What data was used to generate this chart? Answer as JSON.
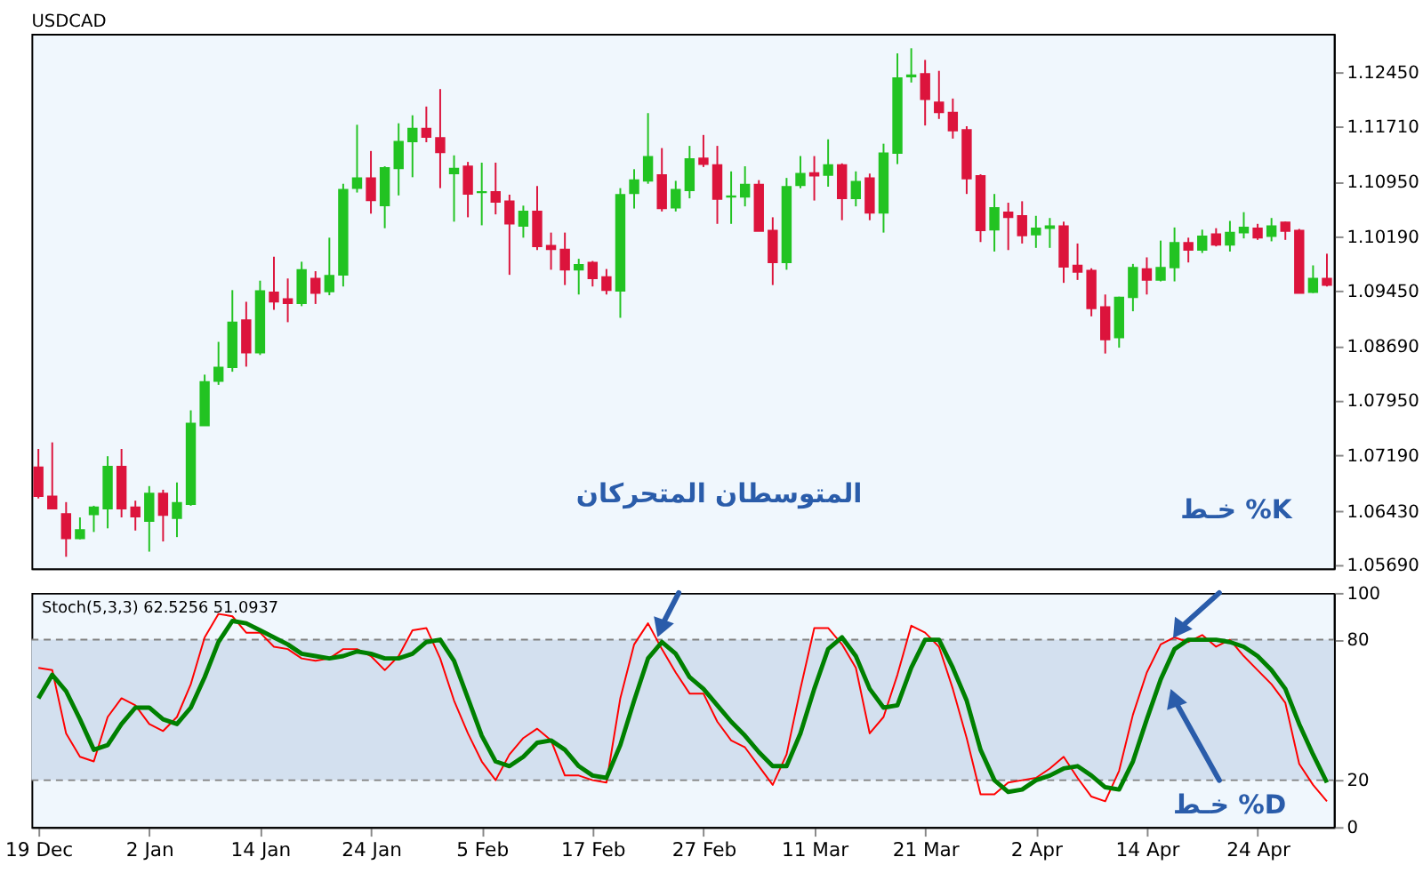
{
  "chart_data": [
    {
      "type": "candlestick",
      "title": "USDCAD",
      "categories": [
        null,
        null,
        null,
        null,
        null,
        null,
        null,
        null,
        null,
        null,
        null,
        null,
        null,
        null,
        null,
        null,
        null,
        null,
        null,
        null,
        null,
        null,
        null,
        null,
        null,
        null,
        null,
        null,
        null,
        null,
        null,
        null,
        null,
        null,
        null,
        null,
        null,
        null,
        null,
        null,
        null,
        null,
        null,
        null,
        null,
        null,
        null,
        null,
        null,
        null,
        null,
        null,
        null,
        null,
        null,
        null,
        null,
        null,
        null,
        null,
        null,
        null,
        null,
        null,
        null,
        null,
        null,
        null,
        null,
        null,
        null,
        null,
        null,
        null,
        null,
        null,
        null,
        null,
        null,
        null,
        null,
        null,
        null,
        null,
        null,
        null,
        null,
        null,
        null,
        null,
        null,
        null,
        null,
        null
      ],
      "ohlc": [
        [
          1.0703,
          1.0728,
          1.066,
          1.0663
        ],
        [
          1.0663,
          1.0737,
          1.0646,
          1.0646
        ],
        [
          1.0639,
          1.0655,
          1.058,
          1.0605
        ],
        [
          1.0605,
          1.0634,
          1.0604,
          1.0617
        ],
        [
          1.0638,
          1.065,
          1.0614,
          1.0648
        ],
        [
          1.0646,
          1.0718,
          1.0619,
          1.0704
        ],
        [
          1.0704,
          1.0728,
          1.0634,
          1.0646
        ],
        [
          1.0648,
          1.0657,
          1.0616,
          1.0635
        ],
        [
          1.0629,
          1.0677,
          1.0587,
          1.0667
        ],
        [
          1.0667,
          1.0672,
          1.0601,
          1.0637
        ],
        [
          1.0633,
          1.0682,
          1.0607,
          1.0654
        ],
        [
          1.0652,
          1.0781,
          1.065,
          1.0763
        ],
        [
          1.076,
          1.083,
          1.076,
          1.082
        ],
        [
          1.0821,
          1.0875,
          1.0816,
          1.084
        ],
        [
          1.084,
          1.0946,
          1.0834,
          1.0902
        ],
        [
          1.0905,
          1.093,
          1.0841,
          1.086
        ],
        [
          1.086,
          1.0959,
          1.0857,
          1.0945
        ],
        [
          1.0943,
          1.0992,
          1.0919,
          1.093
        ],
        [
          1.0934,
          1.0962,
          1.0902,
          1.0928
        ],
        [
          1.0928,
          1.0985,
          1.0924,
          1.0974
        ],
        [
          1.0962,
          1.0972,
          1.0927,
          1.0942
        ],
        [
          1.0944,
          1.1018,
          1.0939,
          1.0966
        ],
        [
          1.0967,
          1.1092,
          1.0951,
          1.1084
        ],
        [
          1.1086,
          1.1173,
          1.108,
          1.11
        ],
        [
          1.11,
          1.1137,
          1.1051,
          1.1069
        ],
        [
          1.1062,
          1.1116,
          1.1031,
          1.1114
        ],
        [
          1.1113,
          1.1175,
          1.1076,
          1.115
        ],
        [
          1.115,
          1.1186,
          1.1101,
          1.1168
        ],
        [
          1.1168,
          1.1198,
          1.1149,
          1.1156
        ],
        [
          1.1155,
          1.1222,
          1.1086,
          1.1135
        ],
        [
          1.1106,
          1.1131,
          1.104,
          1.1113
        ],
        [
          1.1116,
          1.1122,
          1.1046,
          1.1078
        ],
        [
          1.108,
          1.1121,
          1.1035,
          1.1081
        ],
        [
          1.1081,
          1.1121,
          1.105,
          1.1067
        ],
        [
          1.1068,
          1.1077,
          1.0967,
          1.1037
        ],
        [
          1.1034,
          1.1062,
          1.1018,
          1.1054
        ],
        [
          1.1054,
          1.1089,
          1.1001,
          1.1006
        ],
        [
          1.1007,
          1.1025,
          1.0974,
          1.1002
        ],
        [
          1.1002,
          1.1025,
          1.0953,
          1.0974
        ],
        [
          1.0974,
          1.0989,
          1.094,
          1.0981
        ],
        [
          1.0984,
          1.0986,
          1.0951,
          1.0962
        ],
        [
          1.0964,
          1.0975,
          1.094,
          1.0946
        ],
        [
          1.0945,
          1.1086,
          1.0908,
          1.1077
        ],
        [
          1.1079,
          1.1112,
          1.1058,
          1.1097
        ],
        [
          1.1096,
          1.1189,
          1.1092,
          1.1129
        ],
        [
          1.1104,
          1.1141,
          1.1054,
          1.1058
        ],
        [
          1.1059,
          1.1096,
          1.1054,
          1.1084
        ],
        [
          1.1083,
          1.1144,
          1.1072,
          1.1126
        ],
        [
          1.1127,
          1.1159,
          1.1115,
          1.1119
        ],
        [
          1.1118,
          1.1144,
          1.1037,
          1.1071
        ],
        [
          1.1074,
          1.1109,
          1.1037,
          1.1075
        ],
        [
          1.1074,
          1.1116,
          1.1061,
          1.1091
        ],
        [
          1.1091,
          1.1097,
          1.1027,
          1.1027
        ],
        [
          1.1028,
          1.1046,
          1.0953,
          1.0984
        ],
        [
          1.0984,
          1.11,
          1.0974,
          1.1088
        ],
        [
          1.109,
          1.113,
          1.1086,
          1.1106
        ],
        [
          1.1107,
          1.113,
          1.1069,
          1.1103
        ],
        [
          1.1104,
          1.1153,
          1.1088,
          1.1118
        ],
        [
          1.1118,
          1.112,
          1.1042,
          1.1072
        ],
        [
          1.1072,
          1.1109,
          1.1061,
          1.1095
        ],
        [
          1.11,
          1.1106,
          1.1042,
          1.1052
        ],
        [
          1.1052,
          1.1147,
          1.1025,
          1.1134
        ],
        [
          1.1134,
          1.1271,
          1.1119,
          1.1237
        ],
        [
          1.1239,
          1.1278,
          1.1231,
          1.1241
        ],
        [
          1.1243,
          1.1262,
          1.1172,
          1.1208
        ],
        [
          1.1204,
          1.1247,
          1.1181,
          1.119
        ],
        [
          1.119,
          1.1209,
          1.1154,
          1.1165
        ],
        [
          1.1166,
          1.1171,
          1.1078,
          1.1099
        ],
        [
          1.1103,
          1.1105,
          1.1012,
          1.1028
        ],
        [
          1.1029,
          1.1078,
          1.0999,
          1.1059
        ],
        [
          1.1053,
          1.1066,
          1.1001,
          1.1046
        ],
        [
          1.1048,
          1.1068,
          1.101,
          1.1021
        ],
        [
          1.1022,
          1.1048,
          1.1004,
          1.1031
        ],
        [
          1.1031,
          1.1045,
          1.1004,
          1.1034
        ],
        [
          1.1034,
          1.104,
          1.0956,
          1.0978
        ],
        [
          1.098,
          1.101,
          1.096,
          1.0971
        ],
        [
          1.0973,
          1.0976,
          1.091,
          1.0921
        ],
        [
          1.0923,
          1.094,
          1.0859,
          1.0878
        ],
        [
          1.0881,
          1.0937,
          1.0867,
          1.0936
        ],
        [
          1.0936,
          1.0982,
          1.0917,
          1.0977
        ],
        [
          1.0975,
          1.0991,
          1.094,
          1.096
        ],
        [
          1.096,
          1.1014,
          1.0958,
          1.0977
        ],
        [
          1.0977,
          1.1032,
          1.0958,
          1.1011
        ],
        [
          1.1011,
          1.1018,
          1.0984,
          1.1001
        ],
        [
          1.1001,
          1.1029,
          1.0997,
          1.102
        ],
        [
          1.1023,
          1.1031,
          1.1006,
          1.1008
        ],
        [
          1.1008,
          1.1041,
          1.0999,
          1.1025
        ],
        [
          1.1025,
          1.1053,
          1.1017,
          1.1032
        ],
        [
          1.1031,
          1.1037,
          1.1015,
          1.1018
        ],
        [
          1.102,
          1.1045,
          1.1013,
          1.1034
        ],
        [
          1.1039,
          1.104,
          1.1015,
          1.1027
        ],
        [
          1.1028,
          1.103,
          1.0942,
          1.0942
        ],
        [
          1.0943,
          1.098,
          1.0942,
          1.0962
        ],
        [
          1.0962,
          1.0996,
          1.0951,
          1.0953
        ]
      ],
      "colors": [
        "#dc143c",
        "#dc143c",
        "#dc143c",
        "#22c322",
        "#22c322",
        "#22c322",
        "#dc143c",
        "#dc143c",
        "#22c322",
        "#dc143c",
        "#22c322",
        "#22c322",
        "#22c322",
        "#22c322",
        "#22c322",
        "#dc143c",
        "#22c322",
        "#dc143c",
        "#dc143c",
        "#22c322",
        "#dc143c",
        "#22c322",
        "#22c322",
        "#22c322",
        "#dc143c",
        "#22c322",
        "#22c322",
        "#22c322",
        "#dc143c",
        "#dc143c",
        "#22c322",
        "#dc143c",
        "#22c322",
        "#dc143c",
        "#dc143c",
        "#22c322",
        "#dc143c",
        "#dc143c",
        "#dc143c",
        "#22c322",
        "#dc143c",
        "#dc143c",
        "#22c322",
        "#22c322",
        "#22c322",
        "#dc143c",
        "#22c322",
        "#22c322",
        "#dc143c",
        "#dc143c",
        "#22c322",
        "#22c322",
        "#dc143c",
        "#dc143c",
        "#22c322",
        "#22c322",
        "#dc143c",
        "#22c322",
        "#dc143c",
        "#22c322",
        "#dc143c",
        "#22c322",
        "#22c322",
        "#22c322",
        "#dc143c",
        "#dc143c",
        "#dc143c",
        "#dc143c",
        "#dc143c",
        "#22c322",
        "#dc143c",
        "#dc143c",
        "#22c322",
        "#22c322",
        "#dc143c",
        "#dc143c",
        "#dc143c",
        "#dc143c",
        "#22c322",
        "#22c322",
        "#dc143c",
        "#22c322",
        "#22c322",
        "#dc143c",
        "#22c322",
        "#dc143c",
        "#22c322",
        "#22c322",
        "#dc143c",
        "#22c322",
        "#dc143c",
        "#dc143c",
        "#22c322",
        "#dc143c"
      ],
      "ylim": [
        1.0564,
        1.1298
      ],
      "yticks": [
        {
          "value": 1.1245,
          "label": "1.12450"
        },
        {
          "value": 1.1171,
          "label": "1.11710"
        },
        {
          "value": 1.1095,
          "label": "1.10950"
        },
        {
          "value": 1.1019,
          "label": "1.10190"
        },
        {
          "value": 1.0945,
          "label": "1.09450"
        },
        {
          "value": 1.0869,
          "label": "1.08690"
        },
        {
          "value": 1.0795,
          "label": "1.07950"
        },
        {
          "value": 1.0719,
          "label": "1.07190"
        },
        {
          "value": 1.0643,
          "label": "1.06430"
        },
        {
          "value": 1.0569,
          "label": "1.05690"
        }
      ],
      "annotations": [
        "المتوسطان المتحركان",
        "خـط %K"
      ],
      "tick_labels": "y"
    },
    {
      "type": "line",
      "categories": [
        "19 Dec",
        null,
        null,
        null,
        null,
        null,
        null,
        null,
        "2 Jan",
        null,
        null,
        null,
        null,
        null,
        null,
        null,
        "14 Jan",
        null,
        null,
        null,
        null,
        null,
        null,
        null,
        "24 Jan",
        null,
        null,
        null,
        null,
        null,
        null,
        null,
        "5 Feb",
        null,
        null,
        null,
        null,
        null,
        null,
        null,
        "17 Feb",
        null,
        null,
        null,
        null,
        null,
        null,
        null,
        "27 Feb",
        null,
        null,
        null,
        null,
        null,
        null,
        null,
        "11 Mar",
        null,
        null,
        null,
        null,
        null,
        null,
        null,
        "21 Mar",
        null,
        null,
        null,
        null,
        null,
        null,
        null,
        "2 Apr",
        null,
        null,
        null,
        null,
        null,
        null,
        null,
        "14 Apr",
        null,
        null,
        null,
        null,
        null,
        null,
        null,
        "24 Apr",
        null,
        null,
        null,
        null,
        null
      ],
      "series": [
        {
          "color": "#ff0000",
          "values": [
            68,
            67,
            40,
            30,
            28,
            47,
            55,
            52,
            44,
            41,
            47,
            61,
            81,
            91,
            90,
            83,
            83,
            77,
            76,
            72,
            71,
            72,
            76,
            76,
            73,
            67,
            73,
            84,
            85,
            72,
            54,
            40,
            28,
            20,
            31,
            38,
            42,
            37,
            22,
            22,
            20,
            19,
            55,
            78,
            87,
            76,
            66,
            57,
            57,
            45,
            37,
            34,
            26,
            18,
            31,
            59,
            85,
            85,
            78,
            68,
            40,
            47,
            65,
            86,
            83,
            77,
            59,
            38,
            14,
            14,
            19,
            20,
            21,
            25,
            30,
            21,
            13,
            11,
            24,
            48,
            66,
            78,
            81,
            79,
            82,
            77,
            80,
            73,
            67,
            61,
            53,
            27,
            18,
            11
          ]
        },
        {
          "color": "#008000",
          "values": [
            55,
            65,
            58,
            46,
            33,
            35,
            44,
            51,
            51,
            46,
            44,
            51,
            64,
            79,
            88,
            87,
            84,
            81,
            78,
            74,
            73,
            72,
            73,
            75,
            74,
            72,
            72,
            74,
            79,
            80,
            71,
            55,
            39,
            28,
            26,
            30,
            36,
            37,
            33,
            26,
            22,
            21,
            35,
            54,
            72,
            79,
            74,
            64,
            59,
            52,
            45,
            39,
            32,
            26,
            26,
            40,
            59,
            76,
            81,
            73,
            59,
            51,
            52,
            68,
            80,
            80,
            68,
            54,
            33,
            20,
            15,
            16,
            20,
            22,
            25,
            26,
            22,
            17,
            16,
            28,
            46,
            63,
            76,
            80,
            80,
            80,
            79,
            77,
            73,
            67,
            59,
            44,
            31,
            19
          ]
        }
      ],
      "ylim": [
        0,
        100
      ],
      "yticks": [
        0,
        20,
        80,
        100
      ],
      "bands": [
        {
          "axis": "y",
          "from": 20,
          "to": 80,
          "color": "#d3e0ef"
        }
      ],
      "ref_lines": [
        {
          "axis": "y",
          "value": 20,
          "color": "#808080",
          "line_style": "dashed"
        },
        {
          "axis": "y",
          "value": 80,
          "color": "#808080",
          "line_style": "dashed"
        }
      ],
      "annotations": [
        "Stoch(5,3,3) 62.5256 51.0937",
        "خـط %D"
      ]
    }
  ]
}
